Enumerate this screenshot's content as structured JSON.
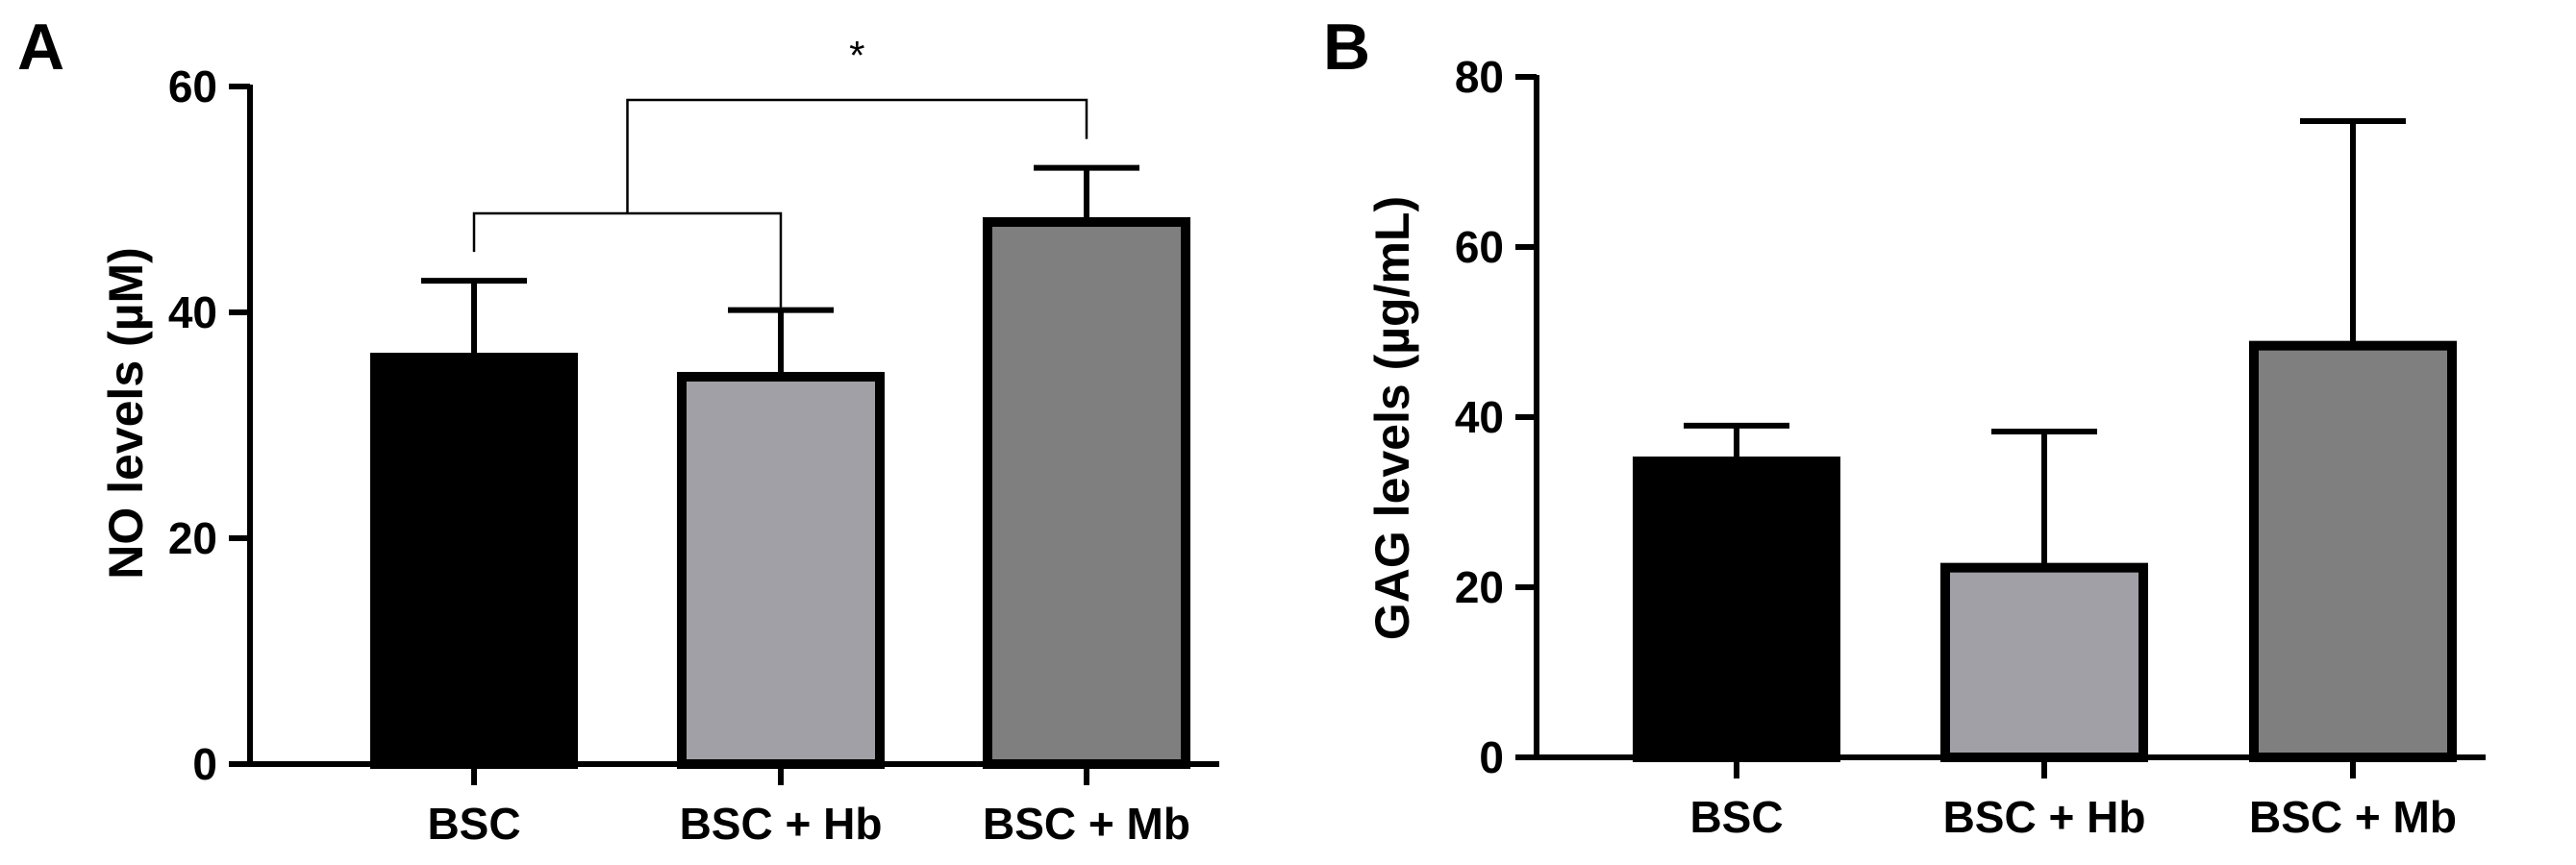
{
  "chart_data": [
    {
      "panel": "A",
      "type": "bar",
      "categories": [
        "BSC",
        "BSC + Hb",
        "BSC + Mb"
      ],
      "values": [
        36,
        34.3,
        48
      ],
      "error_upper": [
        42.8,
        40.2,
        52.8
      ],
      "bar_colors": [
        "#000000",
        "#a0a0a6",
        "#7f7f7f"
      ],
      "ylabel": "NO levels (µM)",
      "ylim": [
        0,
        60
      ],
      "yticks": [
        0,
        20,
        40,
        60
      ],
      "ytick_labels": [
        "0",
        "20",
        "40",
        "60"
      ],
      "significance": {
        "label": "*",
        "group_a": [
          "BSC",
          "BSC + Hb"
        ],
        "group_b": [
          "BSC + Mb"
        ]
      },
      "grid": false,
      "legend": "none"
    },
    {
      "panel": "B",
      "type": "bar",
      "categories": [
        "BSC",
        "BSC + Hb",
        "BSC + Mb"
      ],
      "values": [
        34.8,
        22.3,
        48.4
      ],
      "error_upper": [
        39,
        38.3,
        74.8
      ],
      "bar_colors": [
        "#000000",
        "#a0a0a6",
        "#7f7f7f"
      ],
      "ylabel": "GAG levels (µg/mL)",
      "ylim": [
        0,
        80
      ],
      "yticks": [
        0,
        20,
        40,
        60,
        80
      ],
      "ytick_labels": [
        "0",
        "20",
        "40",
        "60",
        "80"
      ],
      "grid": false,
      "legend": "none"
    }
  ]
}
